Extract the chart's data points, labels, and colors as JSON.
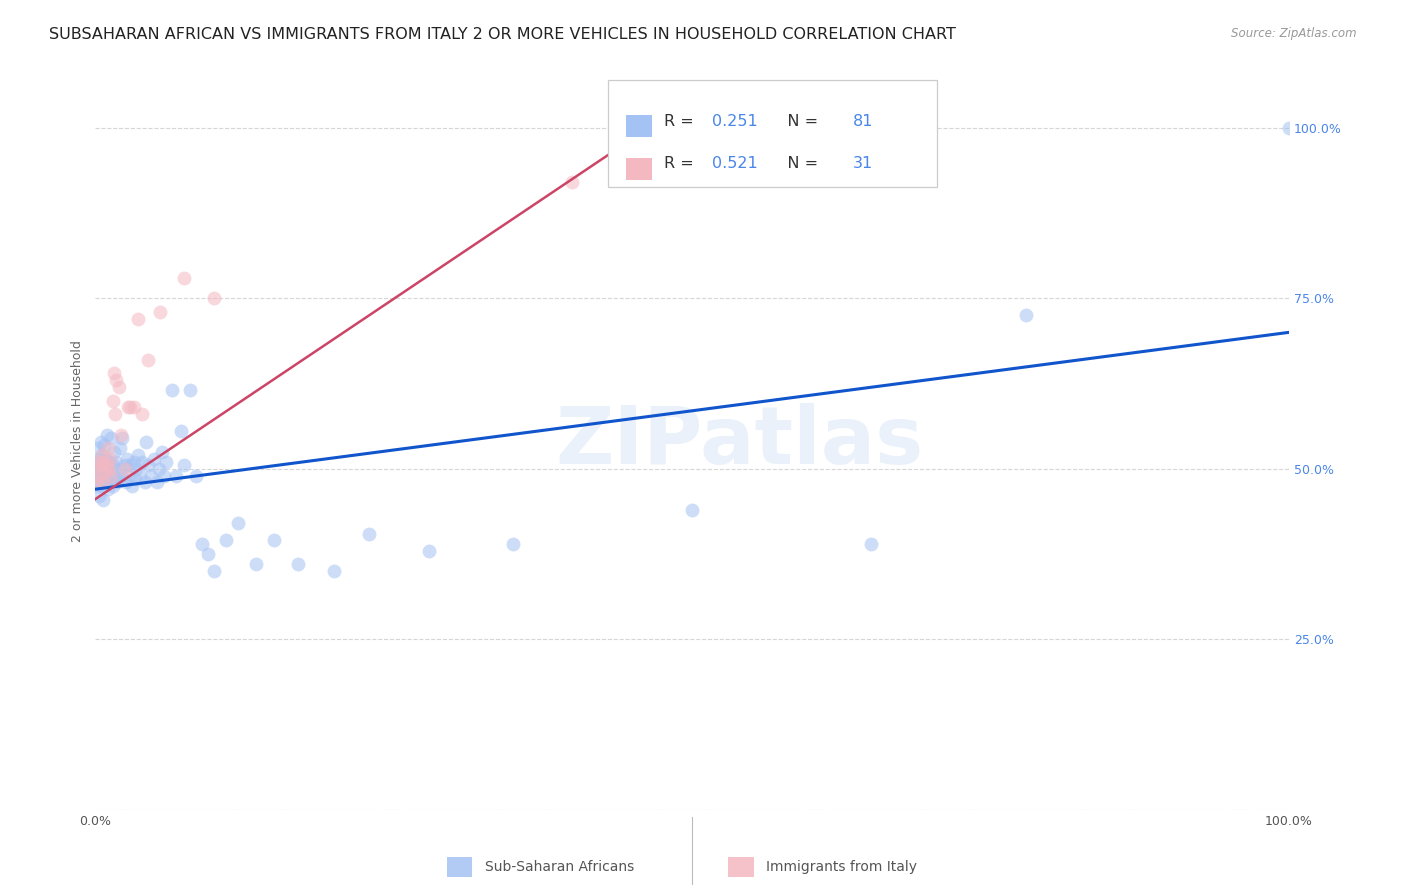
{
  "title": "SUBSAHARAN AFRICAN VS IMMIGRANTS FROM ITALY 2 OR MORE VEHICLES IN HOUSEHOLD CORRELATION CHART",
  "source": "Source: ZipAtlas.com",
  "ylabel": "2 or more Vehicles in Household",
  "watermark": "ZIPatlas",
  "r1": "0.251",
  "n1": "81",
  "r2": "0.521",
  "n2": "31",
  "blue_color": "#a4c2f4",
  "pink_color": "#f4b8c1",
  "blue_line_color": "#1155cc",
  "pink_line_color": "#cc4466",
  "value_color": "#4a86e8",
  "grid_color": "#cccccc",
  "background_color": "#ffffff",
  "blue_scatter_x": [
    0.001,
    0.002,
    0.002,
    0.003,
    0.003,
    0.003,
    0.004,
    0.004,
    0.005,
    0.005,
    0.005,
    0.006,
    0.006,
    0.007,
    0.007,
    0.007,
    0.008,
    0.008,
    0.009,
    0.009,
    0.01,
    0.01,
    0.011,
    0.011,
    0.012,
    0.013,
    0.014,
    0.015,
    0.015,
    0.016,
    0.017,
    0.018,
    0.019,
    0.02,
    0.021,
    0.022,
    0.023,
    0.025,
    0.026,
    0.027,
    0.028,
    0.03,
    0.031,
    0.033,
    0.034,
    0.035,
    0.036,
    0.038,
    0.04,
    0.042,
    0.043,
    0.045,
    0.047,
    0.05,
    0.052,
    0.054,
    0.056,
    0.058,
    0.06,
    0.065,
    0.068,
    0.072,
    0.075,
    0.08,
    0.085,
    0.09,
    0.095,
    0.1,
    0.11,
    0.12,
    0.135,
    0.15,
    0.17,
    0.2,
    0.23,
    0.28,
    0.35,
    0.5,
    0.65,
    0.78,
    1.0
  ],
  "blue_scatter_y": [
    0.495,
    0.51,
    0.475,
    0.5,
    0.53,
    0.48,
    0.515,
    0.46,
    0.505,
    0.49,
    0.54,
    0.475,
    0.52,
    0.495,
    0.51,
    0.455,
    0.5,
    0.535,
    0.49,
    0.515,
    0.48,
    0.55,
    0.5,
    0.47,
    0.51,
    0.49,
    0.545,
    0.505,
    0.475,
    0.525,
    0.49,
    0.51,
    0.48,
    0.5,
    0.53,
    0.49,
    0.545,
    0.505,
    0.48,
    0.515,
    0.49,
    0.505,
    0.475,
    0.51,
    0.485,
    0.5,
    0.52,
    0.49,
    0.51,
    0.48,
    0.54,
    0.505,
    0.49,
    0.515,
    0.48,
    0.5,
    0.525,
    0.49,
    0.51,
    0.615,
    0.49,
    0.555,
    0.505,
    0.615,
    0.49,
    0.39,
    0.375,
    0.35,
    0.395,
    0.42,
    0.36,
    0.395,
    0.36,
    0.35,
    0.405,
    0.38,
    0.39,
    0.44,
    0.39,
    0.725,
    1.0
  ],
  "pink_scatter_x": [
    0.001,
    0.002,
    0.003,
    0.004,
    0.005,
    0.006,
    0.007,
    0.008,
    0.009,
    0.01,
    0.011,
    0.012,
    0.013,
    0.014,
    0.015,
    0.016,
    0.017,
    0.018,
    0.02,
    0.022,
    0.025,
    0.028,
    0.03,
    0.033,
    0.036,
    0.04,
    0.045,
    0.055,
    0.075,
    0.1,
    0.4
  ],
  "pink_scatter_y": [
    0.5,
    0.48,
    0.51,
    0.49,
    0.505,
    0.52,
    0.48,
    0.51,
    0.495,
    0.505,
    0.53,
    0.5,
    0.515,
    0.49,
    0.6,
    0.64,
    0.58,
    0.63,
    0.62,
    0.55,
    0.5,
    0.59,
    0.59,
    0.59,
    0.72,
    0.58,
    0.66,
    0.73,
    0.78,
    0.75,
    0.92
  ],
  "blue_line_x": [
    0.0,
    1.0
  ],
  "blue_line_y": [
    0.47,
    0.7
  ],
  "pink_line_x": [
    0.0,
    0.43
  ],
  "pink_line_y": [
    0.455,
    0.96
  ],
  "xlim": [
    0.0,
    1.0
  ],
  "ylim": [
    0.0,
    1.08
  ],
  "scatter_size": 100,
  "scatter_alpha": 0.55,
  "title_fontsize": 11.5,
  "tick_fontsize": 9,
  "ylabel_fontsize": 9
}
